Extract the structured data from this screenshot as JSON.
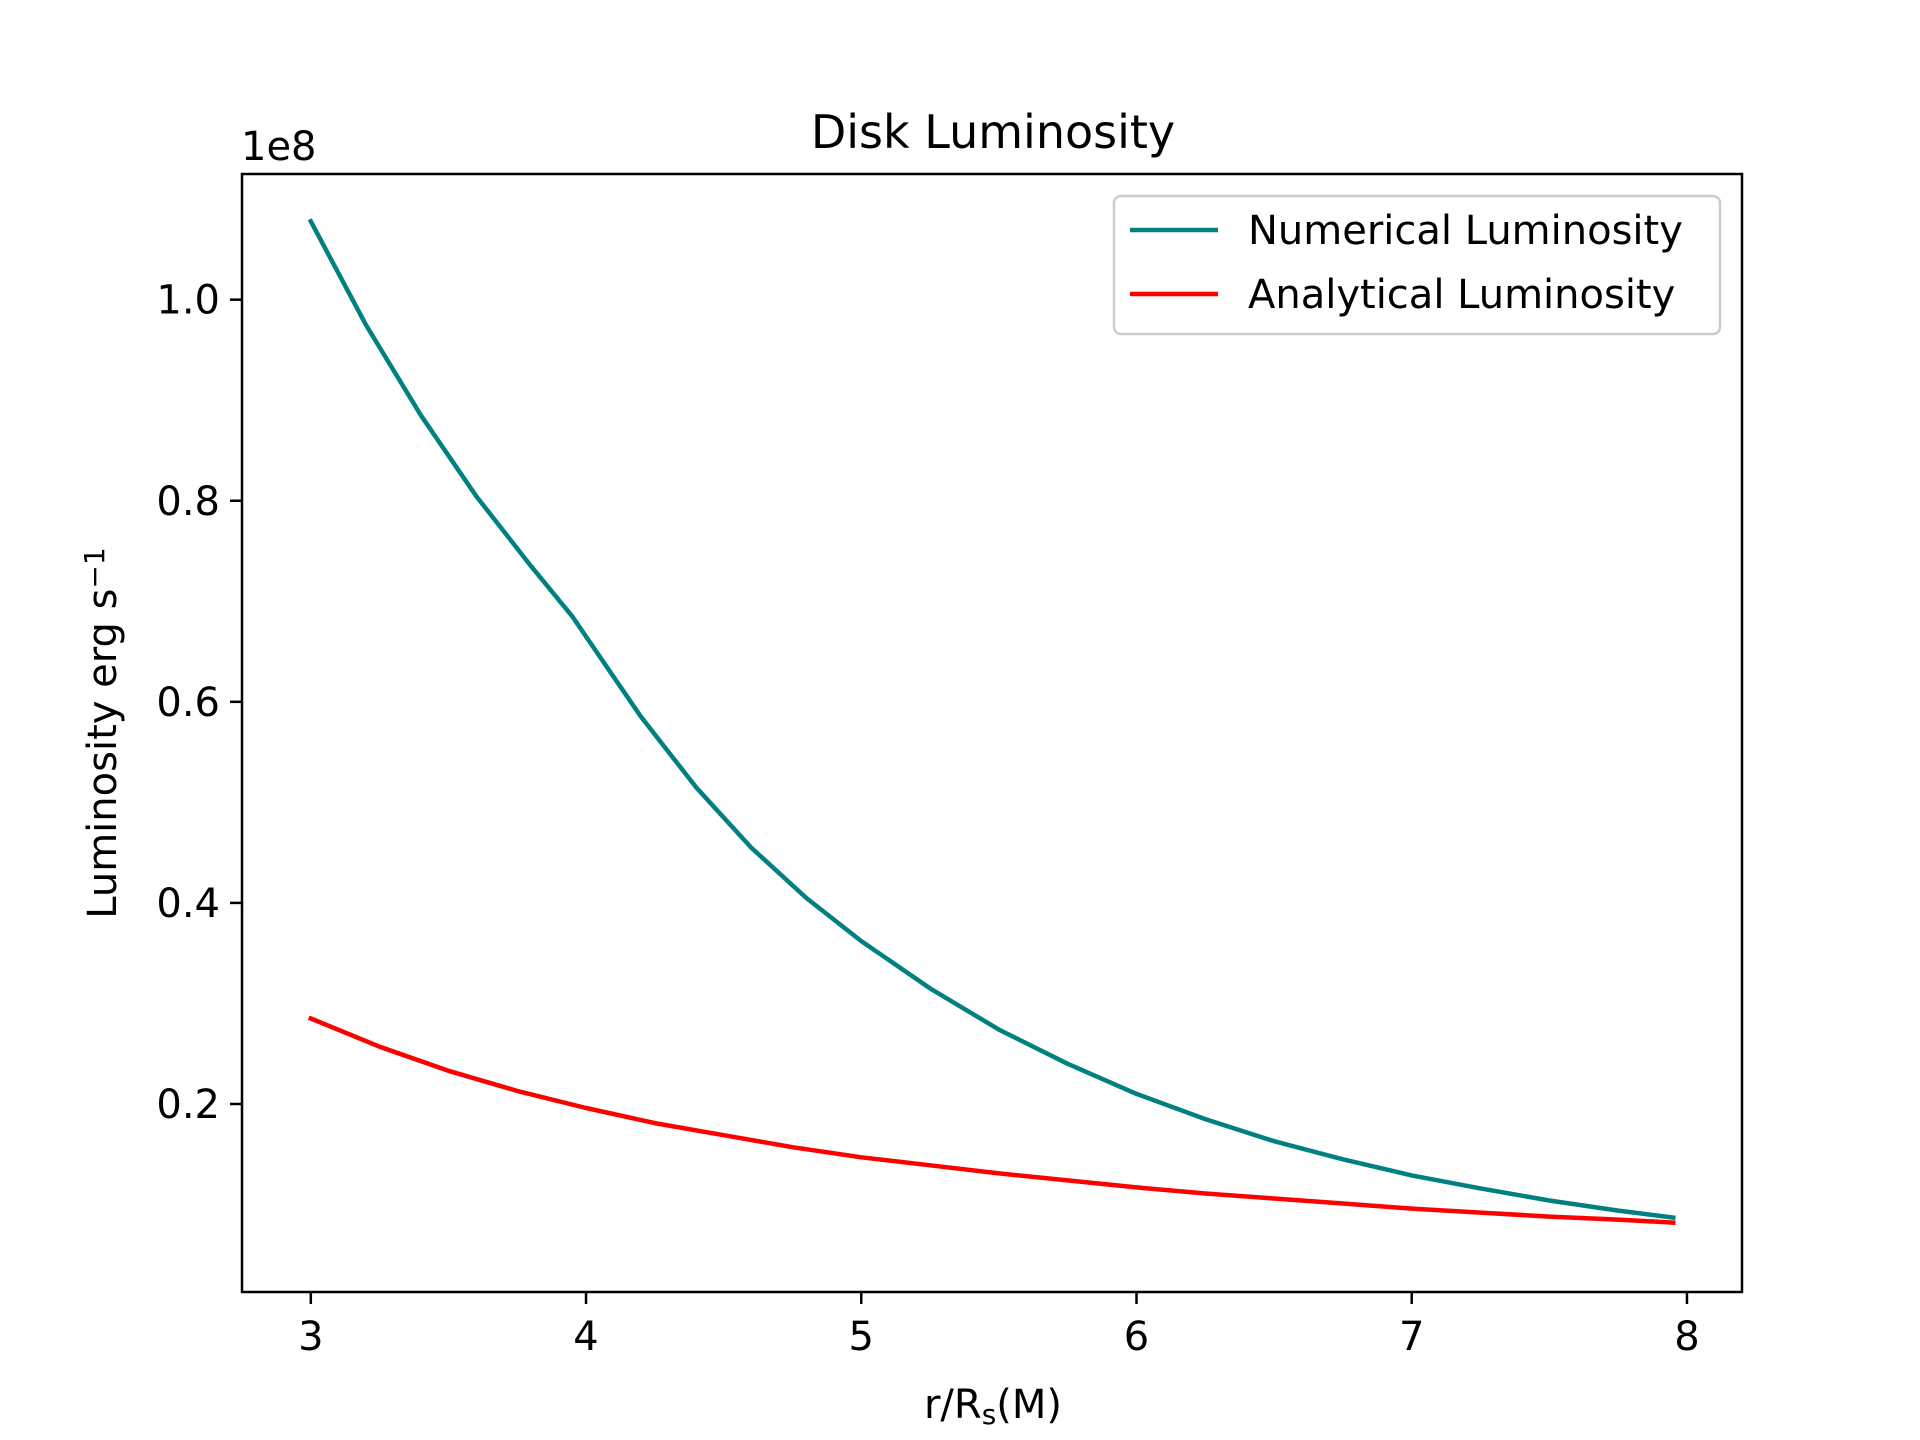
{
  "chart_data": {
    "type": "line",
    "title": "Disk Luminosity",
    "xlabel_main": "r/R",
    "xlabel_sub": "s",
    "xlabel_tail": "(M)",
    "ylabel_main": "Luminosity erg s",
    "ylabel_sup": "−1",
    "y_offset_label": "1e8",
    "y_scale": 100000000,
    "xlim": [
      2.75,
      8.2
    ],
    "ylim": [
      0.013,
      1.125
    ],
    "x_ticks": [
      3,
      4,
      5,
      6,
      7,
      8
    ],
    "x_tick_labels": [
      "3",
      "4",
      "5",
      "6",
      "7",
      "8"
    ],
    "y_ticks": [
      0.2,
      0.4,
      0.6,
      0.8,
      1.0
    ],
    "y_tick_labels": [
      "0.2",
      "0.4",
      "0.6",
      "0.8",
      "1.0"
    ],
    "grid": false,
    "legend_position": "top-right",
    "series": [
      {
        "name": "Numerical Luminosity",
        "color": "#008080",
        "x": [
          3.0,
          3.2,
          3.4,
          3.6,
          3.8,
          3.95,
          4.0,
          4.2,
          4.4,
          4.6,
          4.8,
          5.0,
          5.25,
          5.5,
          5.75,
          6.0,
          6.25,
          6.5,
          6.75,
          7.0,
          7.25,
          7.5,
          7.75,
          7.95
        ],
        "y": [
          1.078,
          0.975,
          0.885,
          0.805,
          0.735,
          0.685,
          0.665,
          0.585,
          0.515,
          0.455,
          0.405,
          0.362,
          0.315,
          0.274,
          0.24,
          0.21,
          0.185,
          0.163,
          0.145,
          0.129,
          0.116,
          0.104,
          0.094,
          0.087
        ]
      },
      {
        "name": "Analytical Luminosity",
        "color": "#ff0000",
        "x": [
          3.0,
          3.25,
          3.5,
          3.75,
          4.0,
          4.25,
          4.5,
          4.75,
          5.0,
          5.25,
          5.5,
          5.75,
          6.0,
          6.25,
          6.5,
          6.75,
          7.0,
          7.25,
          7.5,
          7.75,
          7.95
        ],
        "y": [
          0.285,
          0.257,
          0.233,
          0.213,
          0.196,
          0.181,
          0.169,
          0.157,
          0.147,
          0.139,
          0.131,
          0.124,
          0.117,
          0.111,
          0.106,
          0.101,
          0.096,
          0.092,
          0.088,
          0.085,
          0.082
        ]
      }
    ]
  }
}
